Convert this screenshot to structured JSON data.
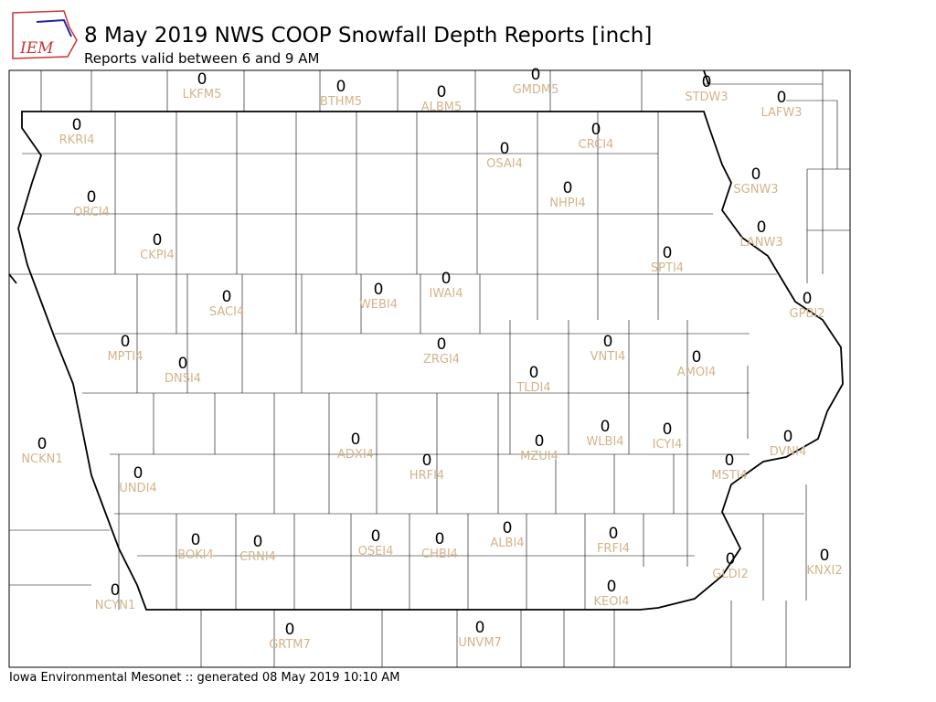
{
  "header": {
    "logo": "IEM",
    "title": "8 May 2019 NWS COOP Snowfall Depth Reports [inch]",
    "subtitle": "Reports valid between 6 and 9 AM"
  },
  "stations": [
    {
      "value": 0,
      "id": "LKFM5"
    },
    {
      "value": 0,
      "id": "BTHM5"
    },
    {
      "value": 0,
      "id": "ALBM5"
    },
    {
      "value": 0,
      "id": "GMDM5"
    },
    {
      "value": 0,
      "id": "STDW3"
    },
    {
      "value": 0,
      "id": "LAFW3"
    },
    {
      "value": 0,
      "id": "RKRI4"
    },
    {
      "value": 0,
      "id": "CRCI4"
    },
    {
      "value": 0,
      "id": "OSAI4"
    },
    {
      "value": 0,
      "id": "SGNW3"
    },
    {
      "value": 0,
      "id": "NHPI4"
    },
    {
      "value": 0,
      "id": "ORCI4"
    },
    {
      "value": 0,
      "id": "LANW3"
    },
    {
      "value": 0,
      "id": "CKPI4"
    },
    {
      "value": 0,
      "id": "SPTI4"
    },
    {
      "value": 0,
      "id": "IWAI4"
    },
    {
      "value": 0,
      "id": "WEBI4"
    },
    {
      "value": 0,
      "id": "SACI4"
    },
    {
      "value": 0,
      "id": "GPBI2"
    },
    {
      "value": 0,
      "id": "MPTI4"
    },
    {
      "value": 0,
      "id": "VNTI4"
    },
    {
      "value": 0,
      "id": "ZRGI4"
    },
    {
      "value": 0,
      "id": "AMOI4"
    },
    {
      "value": 0,
      "id": "DNSI4"
    },
    {
      "value": 0,
      "id": "TLDI4"
    },
    {
      "value": 0,
      "id": "WLBI4"
    },
    {
      "value": 0,
      "id": "ICYI4"
    },
    {
      "value": 0,
      "id": "DVNI4"
    },
    {
      "value": 0,
      "id": "ADXI4"
    },
    {
      "value": 0,
      "id": "MZUI4"
    },
    {
      "value": 0,
      "id": "NCKN1"
    },
    {
      "value": 0,
      "id": "HRFI4"
    },
    {
      "value": 0,
      "id": "MSTI4"
    },
    {
      "value": 0,
      "id": "UNDI4"
    },
    {
      "value": 0,
      "id": "ALBI4"
    },
    {
      "value": 0,
      "id": "FRFI4"
    },
    {
      "value": 0,
      "id": "BOKI4"
    },
    {
      "value": 0,
      "id": "OSEI4"
    },
    {
      "value": 0,
      "id": "CRNI4"
    },
    {
      "value": 0,
      "id": "CHBI4"
    },
    {
      "value": 0,
      "id": "KNXI2"
    },
    {
      "value": 0,
      "id": "GLDI2"
    },
    {
      "value": 0,
      "id": "NCYN1"
    },
    {
      "value": 0,
      "id": "KEOI4"
    },
    {
      "value": 0,
      "id": "GRTM7"
    },
    {
      "value": 0,
      "id": "UNVM7"
    }
  ],
  "footer": "Iowa Environmental Mesonet :: generated 08 May 2019 10:10 AM"
}
